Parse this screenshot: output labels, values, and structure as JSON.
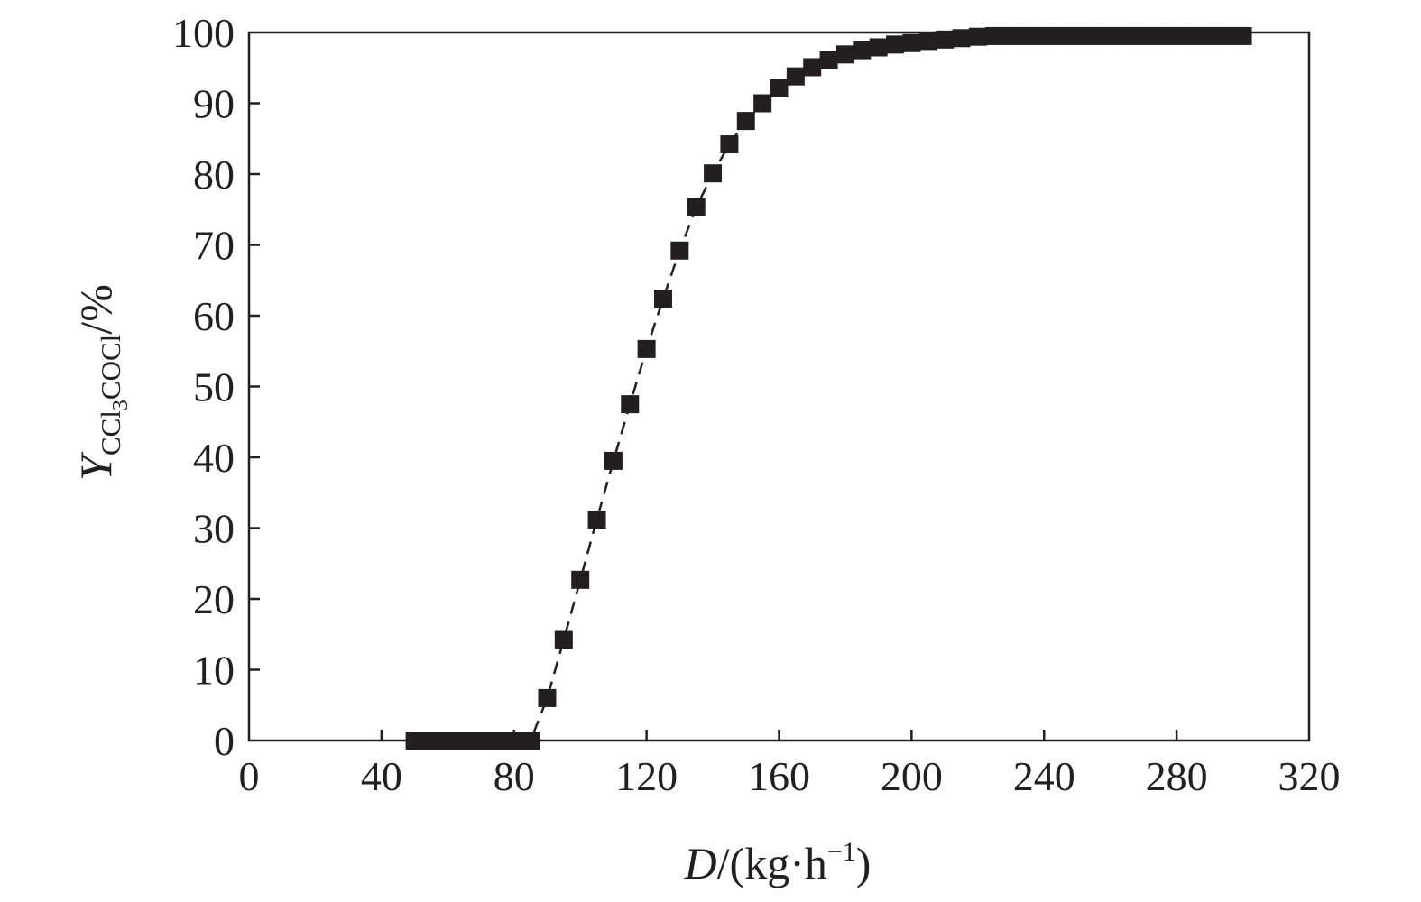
{
  "chart_data": {
    "type": "line",
    "x_axis": {
      "label_var": "D",
      "label_unit_open": "/(kg·h",
      "label_unit_exp": "−1",
      "label_unit_close": ")",
      "range": [
        0,
        320
      ],
      "ticks": [
        0,
        40,
        80,
        120,
        160,
        200,
        240,
        280,
        320
      ],
      "tick_labels": [
        "0",
        "40",
        "80",
        "120",
        "160",
        "200",
        "240",
        "280",
        "320"
      ]
    },
    "y_axis": {
      "label_var": "Y",
      "label_sub_a": "CCl",
      "label_sub_b": "3",
      "label_sub_c": "COCl",
      "label_unit": "/%",
      "range": [
        0,
        100
      ],
      "ticks": [
        0,
        10,
        20,
        30,
        40,
        50,
        60,
        70,
        80,
        90,
        100
      ],
      "tick_labels": [
        "0",
        "10",
        "20",
        "30",
        "40",
        "50",
        "60",
        "70",
        "80",
        "90",
        "100"
      ]
    },
    "grid": false,
    "legend": null,
    "series": [
      {
        "marker": "filled-square",
        "line_style": "dashed",
        "color": "#231f20",
        "x": [
          50,
          55,
          60,
          65,
          70,
          75,
          80,
          85,
          90,
          95,
          100,
          105,
          110,
          115,
          120,
          125,
          130,
          135,
          140,
          145,
          150,
          155,
          160,
          165,
          170,
          175,
          180,
          185,
          190,
          195,
          200,
          205,
          210,
          215,
          220,
          225,
          230,
          235,
          240,
          245,
          250,
          255,
          260,
          265,
          270,
          275,
          280,
          285,
          290,
          295,
          300
        ],
        "y": [
          0,
          0,
          0,
          0,
          0,
          0,
          0,
          0,
          6.0,
          14.2,
          22.7,
          31.2,
          39.5,
          47.5,
          55.3,
          62.4,
          69.2,
          75.3,
          80.1,
          84.2,
          87.5,
          90.0,
          92.1,
          93.8,
          95.1,
          96.1,
          96.9,
          97.5,
          97.9,
          98.3,
          98.5,
          98.8,
          99.0,
          99.2,
          99.4,
          99.5,
          99.5,
          99.5,
          99.5,
          99.5,
          99.5,
          99.5,
          99.5,
          99.5,
          99.5,
          99.5,
          99.5,
          99.5,
          99.5,
          99.5,
          99.5
        ]
      }
    ]
  }
}
